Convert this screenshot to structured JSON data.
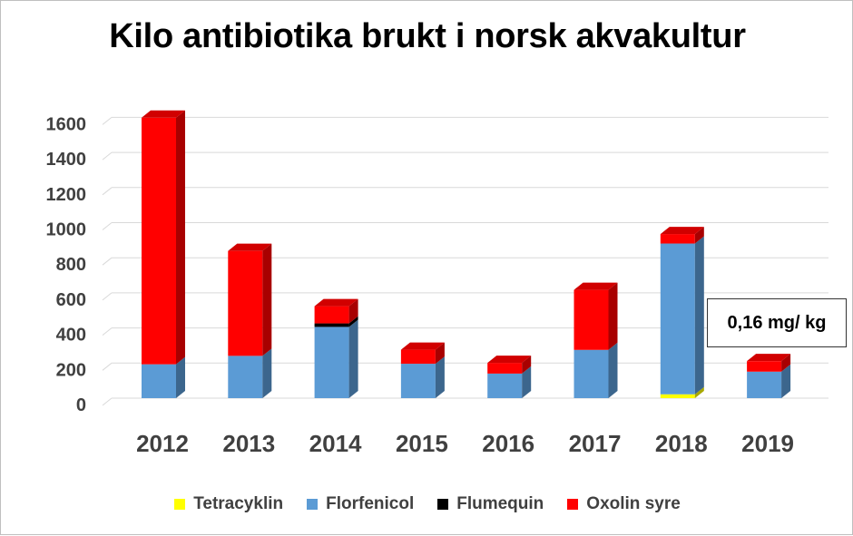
{
  "chart_data": {
    "type": "bar",
    "stacked": true,
    "three_d": true,
    "title": "Kilo antibiotika brukt i norsk akvakultur",
    "categories": [
      "2012",
      "2013",
      "2014",
      "2015",
      "2016",
      "2017",
      "2018",
      "2019"
    ],
    "series": [
      {
        "name": "Tetracyklin",
        "color": "#ffff00",
        "values": [
          0,
          0,
          0,
          0,
          0,
          0,
          22,
          0
        ]
      },
      {
        "name": "Florfenicol",
        "color": "#5b9bd5",
        "values": [
          193,
          241,
          406,
          196,
          140,
          275,
          859,
          151
        ]
      },
      {
        "name": "Flumequin",
        "color": "#000000",
        "values": [
          0,
          0,
          20,
          0,
          0,
          0,
          0,
          0
        ]
      },
      {
        "name": "Oxolin syre",
        "color": "#ff0000",
        "values": [
          1405,
          598,
          98,
          80,
          61,
          342,
          54,
          60
        ]
      }
    ],
    "y_ticks": [
      0,
      200,
      400,
      600,
      800,
      1000,
      1200,
      1400,
      1600
    ],
    "ylim": [
      0,
      1600
    ],
    "grid": true,
    "legend_position": "bottom",
    "annotation": {
      "text": "0,16 mg/ kg",
      "category": "2019"
    }
  }
}
